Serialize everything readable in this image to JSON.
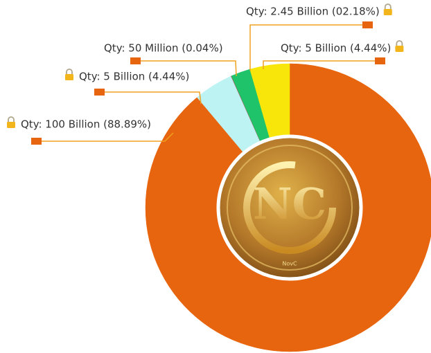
{
  "chart_data": {
    "type": "donut",
    "values": [
      88.89,
      4.44,
      0.04,
      2.18,
      4.44
    ],
    "value_labels": [
      "Qty: 100 Billion (88.89%)",
      "Qty: 5 Billion (4.44%)",
      "Qty: 50 Million (0.04%)",
      "Qty: 2.45 Billion (02.18%)",
      "Qty: 5 Billion (4.44%)"
    ],
    "colors": [
      "#e8650f",
      "#bdf3f3",
      "#d4234a",
      "#1fc46a",
      "#f8e60a"
    ],
    "logo_caption": "NovC"
  }
}
